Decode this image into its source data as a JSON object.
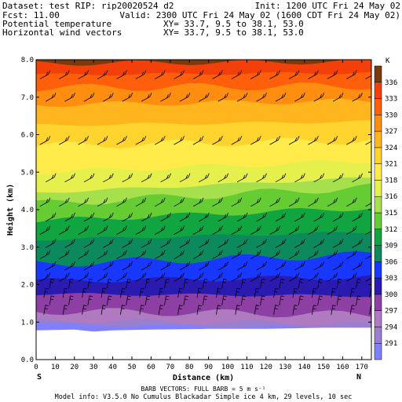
{
  "header": {
    "dataset_line": "Dataset: test   RIP: rip20020524 d2",
    "init_line": "Init: 1200 UTC Fri 24 May 02",
    "fcst_line": "Fcst:    11.00",
    "valid_line": "Valid: 2300 UTC Fri 24 May 02 (1600 CDT Fri 24 May 02)",
    "field1_label": "Potential temperature",
    "field1_coords": "XY=  33.7,  9.5 to  38.1, 53.0",
    "field2_label": "Horizontal wind vectors",
    "field2_coords": "XY=  33.7,  9.5 to  38.1, 53.0"
  },
  "axes": {
    "xlabel": "Distance (km)",
    "ylabel": "Height (km)",
    "left_end_label": "S",
    "right_end_label": "N"
  },
  "colorbar": {
    "unit": "K",
    "levels": [
      291,
      294,
      297,
      300,
      303,
      306,
      309,
      312,
      315,
      316,
      318,
      321,
      324,
      327,
      330,
      333,
      336
    ],
    "colors": [
      "#8080ff",
      "#9a7fcf",
      "#b07ac0",
      "#8e3fa4",
      "#2a1ab0",
      "#1838ff",
      "#0d8a5d",
      "#10a540",
      "#66cc33",
      "#a6e04d",
      "#e6f04d",
      "#ffec4a",
      "#ffd42e",
      "#ffb51d",
      "#ff8d10",
      "#ff5f0a",
      "#f3400a",
      "#7a3a0c"
    ]
  },
  "footer": {
    "barb_line": "BARB VECTORS:  FULL BARB = 5 m s⁻¹",
    "model_line": "Model info: V3.5.0 No Cumulus Blackadar  Simple ice    4 km,  29 levels,    10 sec"
  },
  "chart_data": {
    "type": "heatmap",
    "title": "",
    "xlabel": "Distance (km)",
    "ylabel": "Height (km)",
    "xlim": [
      0,
      175
    ],
    "ylim": [
      0,
      8
    ],
    "xticks": [
      0,
      10,
      20,
      30,
      40,
      50,
      60,
      70,
      80,
      90,
      100,
      110,
      120,
      130,
      140,
      150,
      160,
      170
    ],
    "yticks": [
      0.0,
      1.0,
      2.0,
      3.0,
      4.0,
      5.0,
      6.0,
      7.0,
      8.0
    ],
    "isentropes": [
      {
        "theta": 291,
        "height_km_at_x0": 0.95,
        "height_km_at_x175": 0.85
      },
      {
        "theta": 294,
        "height_km_at_x0": 1.05,
        "height_km_at_x175": 0.95
      },
      {
        "theta": 297,
        "height_km_at_x0": 1.3,
        "height_km_at_x175": 1.2
      },
      {
        "theta": 300,
        "height_km_at_x0": 1.75,
        "height_km_at_x175": 1.7
      },
      {
        "theta": 303,
        "height_km_at_x0": 2.1,
        "height_km_at_x175": 2.2
      },
      {
        "theta": 306,
        "height_km_at_x0": 2.55,
        "height_km_at_x175": 2.8
      },
      {
        "theta": 309,
        "height_km_at_x0": 3.2,
        "height_km_at_x175": 3.4
      },
      {
        "theta": 312,
        "height_km_at_x0": 3.7,
        "height_km_at_x175": 4.05
      },
      {
        "theta": 315,
        "height_km_at_x0": 4.15,
        "height_km_at_x175": 4.6
      },
      {
        "theta": 316,
        "height_km_at_x0": 4.45,
        "height_km_at_x175": 4.85
      },
      {
        "theta": 318,
        "height_km_at_x0": 5.0,
        "height_km_at_x175": 5.3
      },
      {
        "theta": 321,
        "height_km_at_x0": 5.7,
        "height_km_at_x175": 5.85
      },
      {
        "theta": 324,
        "height_km_at_x0": 6.25,
        "height_km_at_x175": 6.35
      },
      {
        "theta": 327,
        "height_km_at_x0": 6.8,
        "height_km_at_x175": 6.9
      },
      {
        "theta": 330,
        "height_km_at_x0": 7.25,
        "height_km_at_x175": 7.3
      },
      {
        "theta": 333,
        "height_km_at_x0": 7.6,
        "height_km_at_x175": 7.65
      },
      {
        "theta": 336,
        "height_km_at_x0": 7.9,
        "height_km_at_x175": 7.95
      }
    ],
    "terrain_km": [
      {
        "x": 0,
        "z": 0.78
      },
      {
        "x": 20,
        "z": 0.8
      },
      {
        "x": 30,
        "z": 0.75
      },
      {
        "x": 40,
        "z": 0.78
      },
      {
        "x": 60,
        "z": 0.8
      },
      {
        "x": 90,
        "z": 0.82
      },
      {
        "x": 120,
        "z": 0.82
      },
      {
        "x": 150,
        "z": 0.85
      },
      {
        "x": 175,
        "z": 0.85
      }
    ],
    "wind_barb_rows_km": [
      1.2,
      1.45,
      1.65,
      1.9,
      2.15,
      2.45,
      2.75,
      3.05,
      3.4,
      3.75,
      4.15,
      4.8,
      5.8,
      6.95,
      7.55
    ],
    "wind_barb_direction": "southwesterly"
  }
}
